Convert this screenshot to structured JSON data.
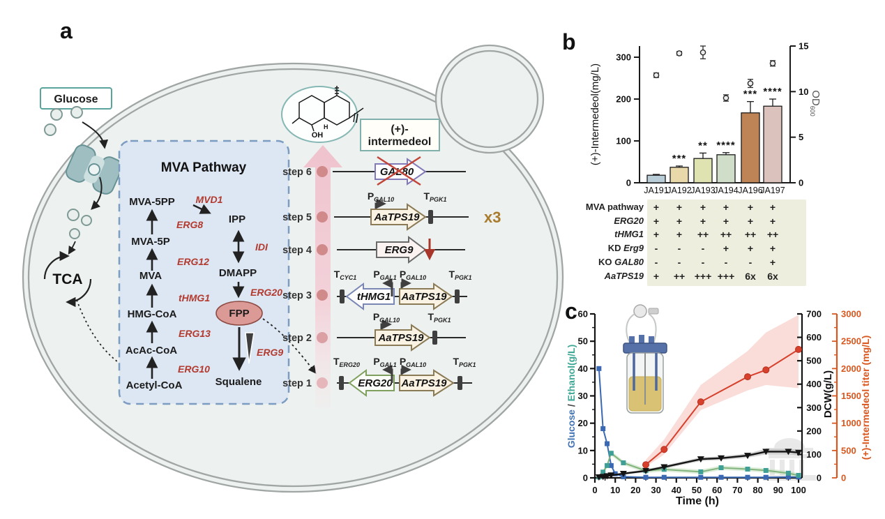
{
  "panel_a": {
    "label": "a",
    "glucose_box": "Glucose",
    "tca": "TCA",
    "mva_title": "MVA Pathway",
    "metabolites": {
      "mva5pp": "MVA-5PP",
      "mva5p": "MVA-5P",
      "mva": "MVA",
      "hmgcoa": "HMG-CoA",
      "acaccoa": "AcAc-CoA",
      "acetylcoa": "Acetyl-CoA",
      "ipp": "IPP",
      "dmapp": "DMAPP",
      "fpp": "FPP",
      "squalene": "Squalene"
    },
    "enzymes": {
      "mvd1": "MVD1",
      "erg8": "ERG8",
      "erg12": "ERG12",
      "thmg1": "tHMG1",
      "erg13": "ERG13",
      "erg10": "ERG10",
      "idi": "IDI",
      "erg20": "ERG20",
      "erg9": "ERG9"
    },
    "product_box": {
      "line1": "(+)-",
      "line2": "intermedeol"
    },
    "molecule": {
      "oh": "OH",
      "h": "H"
    },
    "steps": [
      "step 6",
      "step 5",
      "step 4",
      "step 3",
      "step 2",
      "step 1"
    ],
    "genes": {
      "gal80": "GAL80",
      "aatps19": "AaTPS19",
      "erg9": "ERG9",
      "thmg1": "tHMG1",
      "erg20": "ERG20"
    },
    "reg": {
      "p": "P",
      "t": "T",
      "gal1": "GAL1",
      "gal10": "GAL10",
      "pgk1": "PGK1",
      "cyc1": "CYC1",
      "erg20": "ERG20"
    },
    "x3": "x3"
  },
  "panel_b": {
    "label": "b",
    "chart_data": {
      "type": "bar",
      "categories": [
        "JA191",
        "JA192",
        "JA193",
        "JA194",
        "JA196",
        "JA197"
      ],
      "bar_series": {
        "name": "(+)-Intermedeol (mg/L)",
        "values": [
          18,
          37,
          58,
          67,
          167,
          183
        ],
        "errors": [
          2,
          3,
          13,
          5,
          27,
          17
        ],
        "colors": [
          "#b9cdd9",
          "#e9d8a9",
          "#dee3b1",
          "#cfddc9",
          "#bf8456",
          "#dcc2bc"
        ]
      },
      "od_series": {
        "name": "OD600",
        "values": [
          11.8,
          14.2,
          14.3,
          9.3,
          10.9,
          13.1
        ],
        "errors": [
          0.25,
          0.2,
          0.7,
          0.35,
          0.45,
          0.3
        ]
      },
      "significance": [
        "",
        "***",
        "**",
        "****",
        "***",
        "****"
      ],
      "left_axis": {
        "label": "(+)-Intermedeol(mg/L)",
        "ticks": [
          0,
          100,
          200,
          300
        ]
      },
      "right_axis": {
        "label": "OD",
        "sub": "600",
        "ticks": [
          0,
          5,
          10,
          15
        ],
        "max": 15
      }
    },
    "table": {
      "rows": [
        {
          "prefix": "MVA pathway",
          "gene": "",
          "values": [
            "+",
            "+",
            "+",
            "+",
            "+",
            "+"
          ]
        },
        {
          "prefix": "",
          "gene": "ERG20",
          "values": [
            "+",
            "+",
            "+",
            "+",
            "+",
            "+"
          ]
        },
        {
          "prefix": "",
          "gene": "tHMG1",
          "values": [
            "+",
            "+",
            "++",
            "++",
            "++",
            "++"
          ]
        },
        {
          "prefix": "KD ",
          "gene": "Erg9",
          "values": [
            "-",
            "-",
            "-",
            "+",
            "+",
            "+"
          ]
        },
        {
          "prefix": "KO ",
          "gene": "GAL80",
          "values": [
            "-",
            "-",
            "-",
            "-",
            "-",
            "+"
          ]
        },
        {
          "prefix": "",
          "gene": "AaTPS19",
          "values": [
            "+",
            "++",
            "+++",
            "+++",
            "6x",
            "6x"
          ]
        }
      ]
    }
  },
  "panel_c": {
    "label": "c",
    "chart_data": {
      "type": "line",
      "xlabel": "Time (h)",
      "x_ticks": [
        0,
        10,
        20,
        30,
        40,
        50,
        60,
        70,
        80,
        90,
        100
      ],
      "x_max": 100,
      "left_axis": {
        "parts": [
          {
            "text": "Glucose",
            "color": "#4273b4"
          },
          {
            "text": " / ",
            "color": "#444444"
          },
          {
            "text": "Ethanol(g/L)",
            "color": "#3fa796"
          }
        ],
        "ticks": [
          0,
          10,
          20,
          30,
          40,
          50,
          60
        ],
        "max": 60
      },
      "dcw_axis": {
        "label": "DCW(g/L)",
        "ticks": [
          0,
          100,
          200,
          300,
          400,
          500,
          600,
          700
        ],
        "max": 700
      },
      "titer_axis": {
        "label": "(+)-Intermedeol titer (mg/L)",
        "ticks": [
          0,
          500,
          1000,
          1500,
          2000,
          2500,
          3000
        ],
        "max": 3000,
        "color": "#d9571f"
      },
      "series": [
        {
          "name": "Glucose",
          "axis": "left",
          "color": "#3a68b2",
          "marker": "square",
          "x": [
            2,
            4,
            6,
            8,
            10,
            14,
            25,
            34,
            52,
            62,
            75,
            84,
            95,
            100
          ],
          "y": [
            40,
            18,
            12.5,
            4.5,
            1.5,
            0.4,
            0.2,
            0.2,
            0.2,
            0.2,
            0.2,
            0.2,
            0.3,
            0.3
          ]
        },
        {
          "name": "Ethanol",
          "axis": "left",
          "color": "#82b47e",
          "marker_color": "#3f9f97",
          "marker": "square",
          "x": [
            2,
            4,
            6,
            8,
            14,
            25,
            34,
            52,
            62,
            75,
            84,
            95,
            100
          ],
          "y": [
            0.3,
            2.1,
            4.5,
            9,
            5.5,
            2.6,
            3.1,
            2.2,
            3.7,
            3.2,
            2.7,
            1.7,
            0.9
          ],
          "band_upper": [
            1.1,
            2.9,
            5.3,
            9.8,
            6.3,
            3.4,
            3.9,
            3,
            4.5,
            4,
            3.5,
            2.5,
            1.7
          ],
          "band_lower": [
            0,
            1.3,
            3.7,
            8.2,
            4.7,
            1.8,
            2.3,
            1.4,
            2.9,
            2.4,
            1.9,
            0.9,
            0.1
          ],
          "band_color": "#bcdcb4"
        },
        {
          "name": "DCW",
          "axis": "dcw",
          "color": "#141414",
          "marker": "triangle-down",
          "x": [
            2,
            4,
            6,
            8,
            14,
            25,
            34,
            52,
            62,
            75,
            84,
            95,
            100
          ],
          "y": [
            3,
            5,
            8,
            11,
            18,
            30,
            46,
            80,
            84,
            95,
            112,
            112,
            108
          ],
          "band_upper": [
            6,
            8,
            11,
            14,
            23,
            36,
            53,
            88,
            92,
            104,
            124,
            124,
            120
          ],
          "band_lower": [
            0,
            2,
            5,
            8,
            13,
            24,
            39,
            72,
            76,
            86,
            100,
            100,
            96
          ],
          "band_color": "#a8a8a8"
        },
        {
          "name": "(+)-Intermedeol titer",
          "axis": "titer",
          "color": "#d6402c",
          "marker": "circle",
          "x": [
            25,
            34,
            52,
            75,
            84,
            100
          ],
          "y": [
            240,
            520,
            1390,
            1850,
            1975,
            2350
          ],
          "band_upper": [
            330,
            700,
            1700,
            2320,
            2660,
            2980
          ],
          "band_lower": [
            200,
            430,
            1240,
            1600,
            1700,
            1640
          ],
          "band_color": "#f5b9b2"
        }
      ]
    }
  }
}
